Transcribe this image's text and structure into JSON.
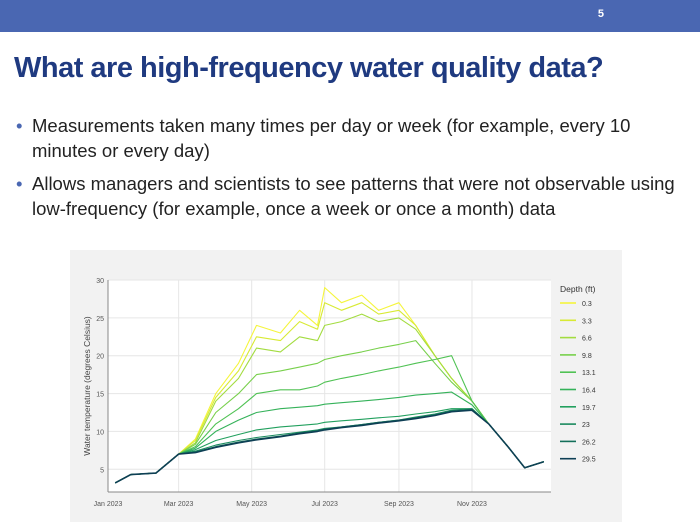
{
  "slide": {
    "number": "5",
    "title": "What are high-frequency water quality data?",
    "bullets": [
      "Measurements taken many times per day or week (for example, every 10 minutes or every day)",
      "Allows managers and scientists to see patterns that were not observable using low-frequency (for example, once a week or once a month) data"
    ],
    "bullet_glyph": "•"
  },
  "colors": {
    "top_bar": "#4a67b2",
    "title": "#1f3a80",
    "bullet_dot": "#4a67b2"
  },
  "chart_data": {
    "type": "line",
    "title": "",
    "xlabel": "",
    "ylabel": "Water temperature (degrees Celsius)",
    "ylim": [
      2,
      30
    ],
    "yticks": [
      5,
      10,
      15,
      20,
      25,
      30
    ],
    "xticks": [
      {
        "label": "Jan 2023",
        "date": "2023-01-01"
      },
      {
        "label": "Mar 2023",
        "date": "2023-03-01"
      },
      {
        "label": "May 2023",
        "date": "2023-05-01"
      },
      {
        "label": "Jul 2023",
        "date": "2023-07-01"
      },
      {
        "label": "Sep 2023",
        "date": "2023-09-01"
      },
      {
        "label": "Nov 2023",
        "date": "2023-11-01"
      }
    ],
    "grid": true,
    "legend": {
      "title": "Depth (ft)",
      "placement": "right"
    },
    "series": [
      {
        "name": "0.3",
        "color": "#f5f53c",
        "x": [
          "2023-01-07",
          "2023-01-20",
          "2023-02-10",
          "2023-03-01",
          "2023-03-15",
          "2023-04-01",
          "2023-04-20",
          "2023-05-05",
          "2023-05-25",
          "2023-06-10",
          "2023-06-25",
          "2023-07-01",
          "2023-07-15",
          "2023-08-01",
          "2023-08-15",
          "2023-09-01",
          "2023-09-15",
          "2023-10-01",
          "2023-10-15",
          "2023-11-01",
          "2023-11-15",
          "2023-12-01",
          "2023-12-15",
          "2023-12-31"
        ],
        "y": [
          3.2,
          4.3,
          4.5,
          7.0,
          9.0,
          15.0,
          19.0,
          24.0,
          23.0,
          26.0,
          24.0,
          29.0,
          27.0,
          28.0,
          26.0,
          27.0,
          24.0,
          20.0,
          17.0,
          14.0,
          11.0,
          8.0,
          5.2,
          6.0
        ]
      },
      {
        "name": "3.3",
        "color": "#d8ea34",
        "x": [
          "2023-01-07",
          "2023-01-20",
          "2023-02-10",
          "2023-03-01",
          "2023-03-15",
          "2023-04-01",
          "2023-04-20",
          "2023-05-05",
          "2023-05-25",
          "2023-06-10",
          "2023-06-25",
          "2023-07-01",
          "2023-07-15",
          "2023-08-01",
          "2023-08-15",
          "2023-09-01",
          "2023-09-15",
          "2023-10-01",
          "2023-10-15",
          "2023-11-01",
          "2023-11-15",
          "2023-12-01",
          "2023-12-15",
          "2023-12-31"
        ],
        "y": [
          3.2,
          4.3,
          4.5,
          7.0,
          8.8,
          14.5,
          18.0,
          22.5,
          22.0,
          24.5,
          23.5,
          27.0,
          26.0,
          27.0,
          25.5,
          26.0,
          24.0,
          20.0,
          17.0,
          14.0,
          11.0,
          8.0,
          5.2,
          6.0
        ]
      },
      {
        "name": "6.6",
        "color": "#a3dc40",
        "x": [
          "2023-01-07",
          "2023-01-20",
          "2023-02-10",
          "2023-03-01",
          "2023-03-15",
          "2023-04-01",
          "2023-04-20",
          "2023-05-05",
          "2023-05-25",
          "2023-06-10",
          "2023-06-25",
          "2023-07-01",
          "2023-07-15",
          "2023-08-01",
          "2023-08-15",
          "2023-09-01",
          "2023-09-15",
          "2023-10-01",
          "2023-10-15",
          "2023-11-01",
          "2023-11-15",
          "2023-12-01",
          "2023-12-15",
          "2023-12-31"
        ],
        "y": [
          3.2,
          4.3,
          4.5,
          7.0,
          8.5,
          14.0,
          17.0,
          21.0,
          20.5,
          22.5,
          22.0,
          24.0,
          24.5,
          25.5,
          24.5,
          25.0,
          23.5,
          20.0,
          17.0,
          14.0,
          11.0,
          8.0,
          5.2,
          6.0
        ]
      },
      {
        "name": "9.8",
        "color": "#78d04c",
        "x": [
          "2023-01-07",
          "2023-01-20",
          "2023-02-10",
          "2023-03-01",
          "2023-03-15",
          "2023-04-01",
          "2023-04-20",
          "2023-05-05",
          "2023-05-25",
          "2023-06-10",
          "2023-06-25",
          "2023-07-01",
          "2023-07-15",
          "2023-08-01",
          "2023-08-15",
          "2023-09-01",
          "2023-09-15",
          "2023-10-01",
          "2023-10-15",
          "2023-11-01",
          "2023-11-15",
          "2023-12-01",
          "2023-12-15",
          "2023-12-31"
        ],
        "y": [
          3.2,
          4.3,
          4.5,
          7.0,
          8.3,
          12.5,
          15.0,
          17.5,
          18.0,
          18.5,
          19.0,
          19.5,
          20.0,
          20.5,
          21.0,
          21.5,
          22.0,
          19.0,
          16.5,
          14.0,
          11.0,
          8.0,
          5.2,
          6.0
        ]
      },
      {
        "name": "13.1",
        "color": "#50c254",
        "x": [
          "2023-01-07",
          "2023-01-20",
          "2023-02-10",
          "2023-03-01",
          "2023-03-15",
          "2023-04-01",
          "2023-04-20",
          "2023-05-05",
          "2023-05-25",
          "2023-06-10",
          "2023-06-25",
          "2023-07-01",
          "2023-07-15",
          "2023-08-01",
          "2023-08-15",
          "2023-09-01",
          "2023-09-15",
          "2023-10-01",
          "2023-10-15",
          "2023-11-01",
          "2023-11-15",
          "2023-12-01",
          "2023-12-15",
          "2023-12-31"
        ],
        "y": [
          3.2,
          4.3,
          4.5,
          7.0,
          8.0,
          11.0,
          13.0,
          15.0,
          15.5,
          15.5,
          16.0,
          16.5,
          17.0,
          17.5,
          18.0,
          18.5,
          19.0,
          19.5,
          20.0,
          14.0,
          11.0,
          8.0,
          5.2,
          6.0
        ]
      },
      {
        "name": "16.4",
        "color": "#35b25a",
        "x": [
          "2023-01-07",
          "2023-01-20",
          "2023-02-10",
          "2023-03-01",
          "2023-03-15",
          "2023-04-01",
          "2023-04-20",
          "2023-05-05",
          "2023-05-25",
          "2023-06-10",
          "2023-06-25",
          "2023-07-01",
          "2023-07-15",
          "2023-08-01",
          "2023-08-15",
          "2023-09-01",
          "2023-09-15",
          "2023-10-01",
          "2023-10-15",
          "2023-11-01",
          "2023-11-15",
          "2023-12-01",
          "2023-12-15",
          "2023-12-31"
        ],
        "y": [
          3.2,
          4.3,
          4.5,
          7.0,
          7.8,
          10.0,
          11.5,
          12.5,
          13.0,
          13.2,
          13.4,
          13.6,
          13.8,
          14.0,
          14.2,
          14.5,
          14.8,
          15.0,
          15.2,
          13.5,
          11.0,
          8.0,
          5.2,
          6.0
        ]
      },
      {
        "name": "19.7",
        "color": "#22a05e",
        "x": [
          "2023-01-07",
          "2023-01-20",
          "2023-02-10",
          "2023-03-01",
          "2023-03-15",
          "2023-04-01",
          "2023-04-20",
          "2023-05-05",
          "2023-05-25",
          "2023-06-10",
          "2023-06-25",
          "2023-07-01",
          "2023-07-15",
          "2023-08-01",
          "2023-08-15",
          "2023-09-01",
          "2023-09-15",
          "2023-10-01",
          "2023-10-15",
          "2023-11-01",
          "2023-11-15",
          "2023-12-01",
          "2023-12-15",
          "2023-12-31"
        ],
        "y": [
          3.2,
          4.3,
          4.5,
          7.0,
          7.6,
          8.8,
          9.6,
          10.2,
          10.6,
          10.8,
          11.0,
          11.2,
          11.4,
          11.6,
          11.8,
          12.0,
          12.3,
          12.6,
          13.0,
          13.0,
          11.0,
          8.0,
          5.2,
          6.0
        ]
      },
      {
        "name": "23",
        "color": "#1a8a5e",
        "x": [
          "2023-01-07",
          "2023-01-20",
          "2023-02-10",
          "2023-03-01",
          "2023-03-15",
          "2023-04-01",
          "2023-04-20",
          "2023-05-05",
          "2023-05-25",
          "2023-06-10",
          "2023-06-25",
          "2023-07-01",
          "2023-07-15",
          "2023-08-01",
          "2023-08-15",
          "2023-09-01",
          "2023-09-15",
          "2023-10-01",
          "2023-10-15",
          "2023-11-01",
          "2023-11-15",
          "2023-12-01",
          "2023-12-15",
          "2023-12-31"
        ],
        "y": [
          3.2,
          4.3,
          4.5,
          7.0,
          7.4,
          8.2,
          8.8,
          9.2,
          9.6,
          9.9,
          10.2,
          10.4,
          10.6,
          10.9,
          11.2,
          11.5,
          11.9,
          12.3,
          12.8,
          13.0,
          11.0,
          8.0,
          5.2,
          6.0
        ]
      },
      {
        "name": "26.2",
        "color": "#136f5a",
        "x": [
          "2023-01-07",
          "2023-01-20",
          "2023-02-10",
          "2023-03-01",
          "2023-03-15",
          "2023-04-01",
          "2023-04-20",
          "2023-05-05",
          "2023-05-25",
          "2023-06-10",
          "2023-06-25",
          "2023-07-01",
          "2023-07-15",
          "2023-08-01",
          "2023-08-15",
          "2023-09-01",
          "2023-09-15",
          "2023-10-01",
          "2023-10-15",
          "2023-11-01",
          "2023-11-15",
          "2023-12-01",
          "2023-12-15",
          "2023-12-31"
        ],
        "y": [
          3.2,
          4.3,
          4.5,
          7.0,
          7.3,
          8.0,
          8.6,
          9.0,
          9.4,
          9.8,
          10.1,
          10.3,
          10.6,
          10.9,
          11.2,
          11.5,
          11.8,
          12.2,
          12.7,
          12.9,
          11.0,
          8.0,
          5.2,
          6.0
        ]
      },
      {
        "name": "29.5",
        "color": "#0e3f55",
        "x": [
          "2023-01-07",
          "2023-01-20",
          "2023-02-10",
          "2023-03-01",
          "2023-03-15",
          "2023-04-01",
          "2023-04-20",
          "2023-05-05",
          "2023-05-25",
          "2023-06-10",
          "2023-06-25",
          "2023-07-01",
          "2023-07-15",
          "2023-08-01",
          "2023-08-15",
          "2023-09-01",
          "2023-09-15",
          "2023-10-01",
          "2023-10-15",
          "2023-11-01",
          "2023-11-15",
          "2023-12-01",
          "2023-12-15",
          "2023-12-31"
        ],
        "y": [
          3.2,
          4.3,
          4.5,
          7.0,
          7.2,
          7.9,
          8.5,
          8.9,
          9.3,
          9.7,
          10.0,
          10.2,
          10.5,
          10.8,
          11.1,
          11.4,
          11.7,
          12.1,
          12.6,
          12.8,
          11.0,
          8.0,
          5.2,
          6.0
        ]
      }
    ]
  }
}
